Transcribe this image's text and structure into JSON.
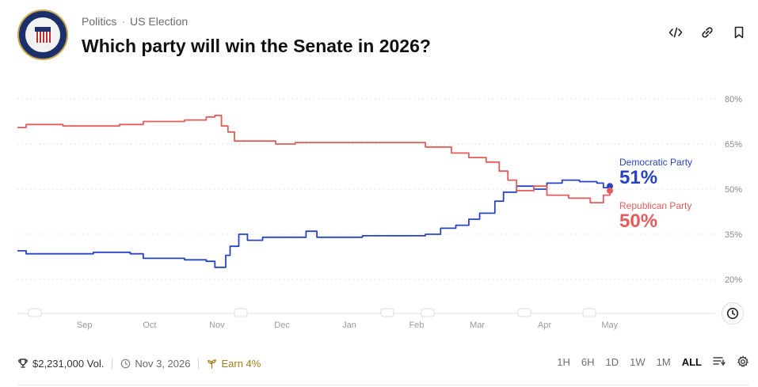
{
  "header": {
    "breadcrumbs": [
      "Politics",
      "US Election"
    ],
    "title": "Which party will win the Senate in 2026?",
    "icons": [
      "embed-icon",
      "link-icon",
      "bookmark-icon"
    ]
  },
  "legend": {
    "dem_name": "Democratic Party",
    "dem_pct": "51%",
    "rep_name": "Republican Party",
    "rep_pct": "50%"
  },
  "footer": {
    "volume": "$2,231,000 Vol.",
    "date": "Nov 3, 2026",
    "earn": "Earn 4%",
    "ranges": [
      "1H",
      "6H",
      "1D",
      "1W",
      "1M",
      "ALL"
    ],
    "active_range": "ALL"
  },
  "colors": {
    "democratic": "#2743c4",
    "republican": "#e35b5b",
    "grid": "#d8d8d8"
  },
  "chart_data": {
    "type": "line",
    "y_ticks": [
      "80%",
      "65%",
      "50%",
      "35%",
      "20%"
    ],
    "ylim": [
      20,
      80
    ],
    "x_ticks": [
      "Sep",
      "Oct",
      "Nov",
      "Dec",
      "Jan",
      "Feb",
      "Mar",
      "Apr",
      "May"
    ],
    "series": [
      {
        "name": "Democratic Party",
        "color": "#2743c4",
        "points": [
          [
            "Aug 4",
            29.5
          ],
          [
            "Aug 8",
            28.5
          ],
          [
            "Aug 25",
            28.5
          ],
          [
            "Sep 8",
            29
          ],
          [
            "Sep 25",
            28.5
          ],
          [
            "Oct 1",
            27
          ],
          [
            "Oct 20",
            26.5
          ],
          [
            "Oct 30",
            26
          ],
          [
            "Nov 3",
            24
          ],
          [
            "Nov 8",
            28
          ],
          [
            "Nov 10",
            31
          ],
          [
            "Nov 14",
            35
          ],
          [
            "Nov 18",
            33
          ],
          [
            "Nov 25",
            34
          ],
          [
            "Dec 10",
            34
          ],
          [
            "Dec 15",
            36
          ],
          [
            "Dec 20",
            34
          ],
          [
            "Jan 10",
            34.5
          ],
          [
            "Jan 28",
            34.5
          ],
          [
            "Feb 8",
            35
          ],
          [
            "Feb 15",
            37
          ],
          [
            "Feb 22",
            38
          ],
          [
            "Feb 28",
            40
          ],
          [
            "Mar 5",
            42
          ],
          [
            "Mar 12",
            46
          ],
          [
            "Mar 16",
            49
          ],
          [
            "Mar 22",
            51
          ],
          [
            "Mar 30",
            50
          ],
          [
            "Apr 5",
            52
          ],
          [
            "Apr 12",
            53
          ],
          [
            "Apr 20",
            52.5
          ],
          [
            "Apr 28",
            52
          ],
          [
            "May 1",
            50.5
          ],
          [
            "May 4",
            51
          ]
        ]
      },
      {
        "name": "Republican Party",
        "color": "#e35b5b",
        "points": [
          [
            "Aug 4",
            70.5
          ],
          [
            "Aug 8",
            71.5
          ],
          [
            "Aug 25",
            71
          ],
          [
            "Sep 10",
            71
          ],
          [
            "Sep 20",
            71.5
          ],
          [
            "Oct 1",
            72.5
          ],
          [
            "Oct 20",
            73
          ],
          [
            "Oct 30",
            74
          ],
          [
            "Nov 3",
            74.5
          ],
          [
            "Nov 6",
            71
          ],
          [
            "Nov 9",
            69
          ],
          [
            "Nov 12",
            66
          ],
          [
            "Nov 20",
            66
          ],
          [
            "Dec 1",
            65
          ],
          [
            "Dec 10",
            65.5
          ],
          [
            "Jan 10",
            65.5
          ],
          [
            "Jan 28",
            65.5
          ],
          [
            "Feb 8",
            64
          ],
          [
            "Feb 20",
            62
          ],
          [
            "Feb 28",
            60.5
          ],
          [
            "Mar 8",
            59
          ],
          [
            "Mar 14",
            56
          ],
          [
            "Mar 18",
            53
          ],
          [
            "Mar 22",
            49.5
          ],
          [
            "Mar 30",
            51
          ],
          [
            "Apr 5",
            48
          ],
          [
            "Apr 15",
            47
          ],
          [
            "Apr 25",
            45.5
          ],
          [
            "May 1",
            48
          ],
          [
            "May 4",
            49.5
          ]
        ]
      }
    ]
  }
}
